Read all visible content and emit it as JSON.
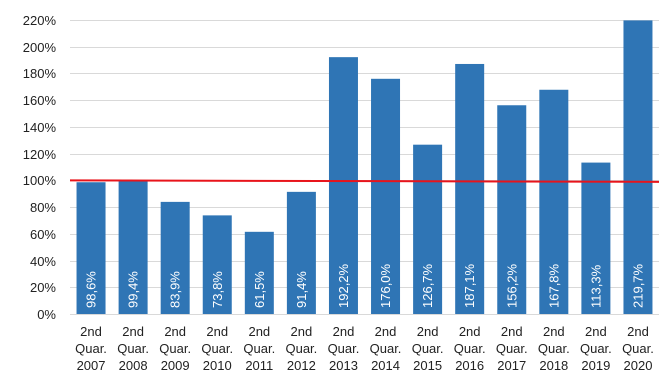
{
  "chart_data": {
    "type": "bar",
    "title": "",
    "xlabel": "",
    "ylabel": "",
    "categories": [
      [
        "2nd",
        "Quar.",
        "2007"
      ],
      [
        "2nd",
        "Quar.",
        "2008"
      ],
      [
        "2nd",
        "Quar.",
        "2009"
      ],
      [
        "2nd",
        "Quar.",
        "2010"
      ],
      [
        "2nd",
        "Quar.",
        "2011"
      ],
      [
        "2nd",
        "Quar.",
        "2012"
      ],
      [
        "2nd",
        "Quar.",
        "2013"
      ],
      [
        "2nd",
        "Quar.",
        "2014"
      ],
      [
        "2nd",
        "Quar.",
        "2015"
      ],
      [
        "2nd",
        "Quar.",
        "2016"
      ],
      [
        "2nd",
        "Quar.",
        "2017"
      ],
      [
        "2nd",
        "Quar.",
        "2018"
      ],
      [
        "2nd",
        "Quar.",
        "2019"
      ],
      [
        "2nd",
        "Quar.",
        "2020"
      ]
    ],
    "values": [
      98.6,
      99.4,
      83.9,
      73.8,
      61.5,
      91.4,
      192.2,
      176.0,
      126.7,
      187.1,
      156.2,
      167.8,
      113.3,
      219.7
    ],
    "data_labels": [
      "98,6%",
      "99,4%",
      "83,9%",
      "73,8%",
      "61,5%",
      "91,4%",
      "192,2%",
      "176,0%",
      "126,7%",
      "187,1%",
      "156,2%",
      "167,8%",
      "113,3%",
      "219,7%"
    ],
    "ylim": [
      0,
      220
    ],
    "yticks": [
      0,
      20,
      40,
      60,
      80,
      100,
      120,
      140,
      160,
      180,
      200,
      220
    ],
    "ytick_labels": [
      "0%",
      "20%",
      "40%",
      "60%",
      "80%",
      "100%",
      "120%",
      "140%",
      "160%",
      "180%",
      "200%",
      "220%"
    ],
    "reference_line": {
      "value": 100,
      "color": "#e8141b"
    },
    "bar_color": "#2f75b5",
    "grid": true,
    "legend": "none"
  }
}
